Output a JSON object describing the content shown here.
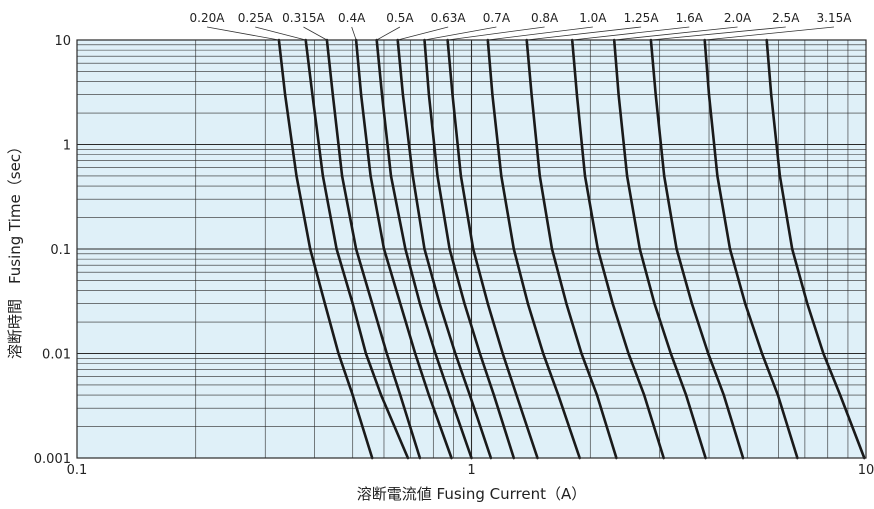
{
  "chart_data": {
    "type": "line",
    "title": "",
    "xlabel": "溶断電流値 Fusing Current（A）",
    "ylabel": "溶断時間　Fusing Time（sec）",
    "x_scale": "log",
    "y_scale": "log",
    "xlim": [
      0.1,
      10
    ],
    "ylim": [
      0.001,
      10
    ],
    "grid": true,
    "x_tick_labels": [
      "0.1",
      "1",
      "10"
    ],
    "y_tick_labels": [
      "0.001",
      "0.01",
      "0.1",
      "1",
      "10"
    ],
    "colors": {
      "plot_background": "#dff0f8",
      "grid": "#2a2a2a",
      "curve": "#1a1a1a"
    },
    "series": [
      {
        "name": "0.20A",
        "points": [
          [
            0.325,
            10
          ],
          [
            0.337,
            3.0
          ],
          [
            0.36,
            0.5
          ],
          [
            0.39,
            0.1
          ],
          [
            0.425,
            0.03
          ],
          [
            0.46,
            0.01
          ],
          [
            0.5,
            0.004
          ],
          [
            0.56,
            0.001
          ]
        ]
      },
      {
        "name": "0.25A",
        "points": [
          [
            0.38,
            10
          ],
          [
            0.395,
            3.0
          ],
          [
            0.42,
            0.5
          ],
          [
            0.455,
            0.1
          ],
          [
            0.5,
            0.03
          ],
          [
            0.54,
            0.01
          ],
          [
            0.59,
            0.004
          ],
          [
            0.69,
            0.001
          ]
        ]
      },
      {
        "name": "0.315A",
        "points": [
          [
            0.43,
            10
          ],
          [
            0.445,
            3.0
          ],
          [
            0.47,
            0.5
          ],
          [
            0.51,
            0.1
          ],
          [
            0.56,
            0.03
          ],
          [
            0.61,
            0.01
          ],
          [
            0.66,
            0.004
          ],
          [
            0.74,
            0.001
          ]
        ]
      },
      {
        "name": "0.4A",
        "points": [
          [
            0.51,
            10
          ],
          [
            0.525,
            3.0
          ],
          [
            0.555,
            0.5
          ],
          [
            0.6,
            0.1
          ],
          [
            0.66,
            0.03
          ],
          [
            0.72,
            0.01
          ],
          [
            0.78,
            0.004
          ],
          [
            0.89,
            0.001
          ]
        ]
      },
      {
        "name": "0.5A",
        "points": [
          [
            0.575,
            10
          ],
          [
            0.593,
            3.0
          ],
          [
            0.625,
            0.5
          ],
          [
            0.68,
            0.1
          ],
          [
            0.74,
            0.03
          ],
          [
            0.81,
            0.01
          ],
          [
            0.88,
            0.004
          ],
          [
            1.0,
            0.001
          ]
        ]
      },
      {
        "name": "0.63A",
        "points": [
          [
            0.65,
            10
          ],
          [
            0.67,
            3.0
          ],
          [
            0.71,
            0.5
          ],
          [
            0.76,
            0.1
          ],
          [
            0.83,
            0.03
          ],
          [
            0.91,
            0.01
          ],
          [
            0.99,
            0.004
          ],
          [
            1.12,
            0.001
          ]
        ]
      },
      {
        "name": "0.7A",
        "points": [
          [
            0.76,
            10
          ],
          [
            0.78,
            3.0
          ],
          [
            0.82,
            0.5
          ],
          [
            0.88,
            0.1
          ],
          [
            0.96,
            0.03
          ],
          [
            1.05,
            0.01
          ],
          [
            1.14,
            0.004
          ],
          [
            1.28,
            0.001
          ]
        ]
      },
      {
        "name": "0.8A",
        "points": [
          [
            0.87,
            10
          ],
          [
            0.895,
            3.0
          ],
          [
            0.94,
            0.5
          ],
          [
            1.01,
            0.1
          ],
          [
            1.1,
            0.03
          ],
          [
            1.2,
            0.01
          ],
          [
            1.3,
            0.004
          ],
          [
            1.47,
            0.001
          ]
        ]
      },
      {
        "name": "1.0A",
        "points": [
          [
            1.1,
            10
          ],
          [
            1.13,
            3.0
          ],
          [
            1.19,
            0.5
          ],
          [
            1.28,
            0.1
          ],
          [
            1.39,
            0.03
          ],
          [
            1.52,
            0.01
          ],
          [
            1.66,
            0.004
          ],
          [
            1.88,
            0.001
          ]
        ]
      },
      {
        "name": "1.25A",
        "points": [
          [
            1.38,
            10
          ],
          [
            1.42,
            3.0
          ],
          [
            1.49,
            0.5
          ],
          [
            1.6,
            0.1
          ],
          [
            1.74,
            0.03
          ],
          [
            1.9,
            0.01
          ],
          [
            2.08,
            0.004
          ],
          [
            2.33,
            0.001
          ]
        ]
      },
      {
        "name": "1.6A",
        "points": [
          [
            1.8,
            10
          ],
          [
            1.85,
            3.0
          ],
          [
            1.94,
            0.5
          ],
          [
            2.09,
            0.1
          ],
          [
            2.28,
            0.03
          ],
          [
            2.5,
            0.01
          ],
          [
            2.74,
            0.004
          ],
          [
            3.07,
            0.001
          ]
        ]
      },
      {
        "name": "2.0A",
        "points": [
          [
            2.3,
            10
          ],
          [
            2.36,
            3.0
          ],
          [
            2.48,
            0.5
          ],
          [
            2.67,
            0.1
          ],
          [
            2.91,
            0.03
          ],
          [
            3.2,
            0.01
          ],
          [
            3.5,
            0.004
          ],
          [
            3.92,
            0.001
          ]
        ]
      },
      {
        "name": "2.5A",
        "points": [
          [
            2.85,
            10
          ],
          [
            2.93,
            3.0
          ],
          [
            3.08,
            0.5
          ],
          [
            3.31,
            0.1
          ],
          [
            3.62,
            0.03
          ],
          [
            3.98,
            0.01
          ],
          [
            4.36,
            0.004
          ],
          [
            4.88,
            0.001
          ]
        ]
      },
      {
        "name": "3.15A",
        "points": [
          [
            3.9,
            10
          ],
          [
            4.0,
            3.0
          ],
          [
            4.2,
            0.5
          ],
          [
            4.52,
            0.1
          ],
          [
            4.94,
            0.03
          ],
          [
            5.45,
            0.01
          ],
          [
            5.98,
            0.004
          ],
          [
            6.7,
            0.001
          ]
        ]
      },
      {
        "name": "",
        "points": [
          [
            5.6,
            10
          ],
          [
            5.75,
            3.0
          ],
          [
            6.05,
            0.5
          ],
          [
            6.5,
            0.1
          ],
          [
            7.1,
            0.03
          ],
          [
            7.8,
            0.01
          ],
          [
            8.6,
            0.004
          ],
          [
            9.9,
            0.001
          ]
        ]
      }
    ]
  }
}
